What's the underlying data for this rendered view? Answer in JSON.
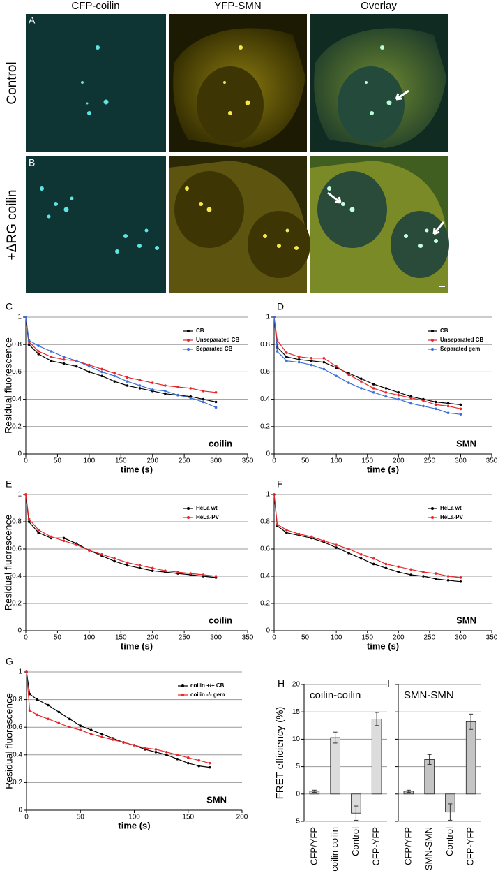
{
  "figure": {
    "column_headers": [
      "CFP-coilin",
      "YFP-SMN",
      "Overlay"
    ],
    "panels": [
      {
        "label": "A",
        "row_label": "Control"
      },
      {
        "label": "B",
        "row_label": "+ΔRG coilin"
      }
    ]
  },
  "chart_data": [
    {
      "type": "line",
      "panel": "C",
      "ylabel": "Residual fluorescence",
      "xlabel": "time (s)",
      "annotation": "coilin",
      "x": [
        0,
        5,
        20,
        40,
        60,
        80,
        100,
        120,
        140,
        160,
        180,
        200,
        220,
        240,
        260,
        280,
        300
      ],
      "series": [
        {
          "name": "CB",
          "color": "#000000",
          "values": [
            1.0,
            0.8,
            0.73,
            0.68,
            0.66,
            0.64,
            0.6,
            0.57,
            0.53,
            0.5,
            0.48,
            0.46,
            0.44,
            0.43,
            0.42,
            0.4,
            0.38
          ]
        },
        {
          "name": "Unseparated CB",
          "color": "#e8262a",
          "values": [
            1.0,
            0.82,
            0.75,
            0.71,
            0.69,
            0.68,
            0.65,
            0.62,
            0.59,
            0.56,
            0.54,
            0.52,
            0.5,
            0.49,
            0.48,
            0.46,
            0.45
          ]
        },
        {
          "name": "Separated CB",
          "color": "#3a6fd8",
          "values": [
            1.0,
            0.83,
            0.79,
            0.75,
            0.71,
            0.68,
            0.64,
            0.6,
            0.57,
            0.53,
            0.5,
            0.47,
            0.46,
            0.43,
            0.41,
            0.38,
            0.34
          ]
        }
      ],
      "xlim": [
        0,
        350
      ],
      "xticks": [
        0,
        50,
        100,
        150,
        200,
        250,
        300,
        350
      ],
      "ylim": [
        0,
        1
      ],
      "yticks": [
        0,
        0.2,
        0.4,
        0.6,
        0.8,
        1
      ],
      "grid": true,
      "legend": "top-right"
    },
    {
      "type": "line",
      "panel": "D",
      "xlabel": "time (s)",
      "annotation": "SMN",
      "x": [
        0,
        5,
        20,
        40,
        60,
        80,
        100,
        120,
        140,
        160,
        180,
        200,
        220,
        240,
        260,
        280,
        300
      ],
      "series": [
        {
          "name": "CB",
          "color": "#000000",
          "values": [
            1.0,
            0.78,
            0.71,
            0.69,
            0.68,
            0.67,
            0.63,
            0.59,
            0.55,
            0.51,
            0.48,
            0.45,
            0.42,
            0.4,
            0.38,
            0.37,
            0.36
          ]
        },
        {
          "name": "Unseparated CB",
          "color": "#e8262a",
          "values": [
            1.0,
            0.83,
            0.74,
            0.71,
            0.7,
            0.7,
            0.64,
            0.58,
            0.53,
            0.48,
            0.45,
            0.43,
            0.41,
            0.39,
            0.36,
            0.35,
            0.33
          ]
        },
        {
          "name": "Separated gem",
          "color": "#3a6fd8",
          "values": [
            1.0,
            0.75,
            0.68,
            0.67,
            0.65,
            0.62,
            0.57,
            0.52,
            0.48,
            0.45,
            0.42,
            0.4,
            0.37,
            0.35,
            0.33,
            0.3,
            0.29
          ]
        }
      ],
      "xlim": [
        0,
        350
      ],
      "xticks": [
        0,
        50,
        100,
        150,
        200,
        250,
        300,
        350
      ],
      "ylim": [
        0,
        1
      ],
      "yticks": [
        0,
        0.2,
        0.4,
        0.6,
        0.8,
        1
      ],
      "grid": true,
      "legend": "top-right"
    },
    {
      "type": "line",
      "panel": "E",
      "ylabel": "Residual fluorescence",
      "xlabel": "time (s)",
      "annotation": "coilin",
      "x": [
        0,
        5,
        20,
        40,
        60,
        80,
        100,
        120,
        140,
        160,
        180,
        200,
        220,
        240,
        260,
        280,
        300
      ],
      "series": [
        {
          "name": "HeLa wt",
          "color": "#000000",
          "values": [
            1.0,
            0.8,
            0.72,
            0.68,
            0.68,
            0.64,
            0.59,
            0.55,
            0.51,
            0.48,
            0.46,
            0.44,
            0.43,
            0.42,
            0.41,
            0.4,
            0.39
          ]
        },
        {
          "name": "HeLa-PV",
          "color": "#e8262a",
          "values": [
            1.0,
            0.82,
            0.74,
            0.69,
            0.66,
            0.63,
            0.59,
            0.56,
            0.53,
            0.5,
            0.48,
            0.46,
            0.44,
            0.43,
            0.42,
            0.41,
            0.4
          ]
        }
      ],
      "xlim": [
        0,
        350
      ],
      "xticks": [
        0,
        50,
        100,
        150,
        200,
        250,
        300,
        350
      ],
      "ylim": [
        0,
        1
      ],
      "yticks": [
        0,
        0.2,
        0.4,
        0.6,
        0.8,
        1
      ],
      "grid": true,
      "legend": "top-right"
    },
    {
      "type": "line",
      "panel": "F",
      "xlabel": "time (s)",
      "annotation": "SMN",
      "x": [
        0,
        5,
        20,
        40,
        60,
        80,
        100,
        120,
        140,
        160,
        180,
        200,
        220,
        240,
        260,
        280,
        300
      ],
      "series": [
        {
          "name": "HeLa wt",
          "color": "#000000",
          "values": [
            1.0,
            0.77,
            0.72,
            0.7,
            0.68,
            0.65,
            0.61,
            0.57,
            0.53,
            0.49,
            0.46,
            0.43,
            0.41,
            0.4,
            0.38,
            0.37,
            0.36
          ]
        },
        {
          "name": "HeLa-PV",
          "color": "#e8262a",
          "values": [
            1.0,
            0.78,
            0.74,
            0.71,
            0.69,
            0.66,
            0.63,
            0.6,
            0.56,
            0.53,
            0.49,
            0.47,
            0.45,
            0.43,
            0.42,
            0.4,
            0.39
          ]
        }
      ],
      "xlim": [
        0,
        350
      ],
      "xticks": [
        0,
        50,
        100,
        150,
        200,
        250,
        300,
        350
      ],
      "ylim": [
        0,
        1
      ],
      "yticks": [
        0,
        0.2,
        0.4,
        0.6,
        0.8,
        1
      ],
      "grid": true,
      "legend": "top-right"
    },
    {
      "type": "line",
      "panel": "G",
      "ylabel": "Residual fluorescence",
      "xlabel": "time (s)",
      "annotation": "SMN",
      "x": [
        0,
        3,
        10,
        20,
        30,
        40,
        50,
        60,
        70,
        80,
        90,
        100,
        110,
        120,
        130,
        140,
        150,
        160,
        170
      ],
      "series": [
        {
          "name": "coilin +/+  CB",
          "color": "#000000",
          "values": [
            1.0,
            0.84,
            0.8,
            0.76,
            0.71,
            0.66,
            0.61,
            0.58,
            0.55,
            0.52,
            0.49,
            0.47,
            0.44,
            0.42,
            0.4,
            0.37,
            0.34,
            0.32,
            0.31
          ]
        },
        {
          "name": "coilin -/-  gem",
          "color": "#e8262a",
          "values": [
            1.0,
            0.72,
            0.69,
            0.66,
            0.63,
            0.6,
            0.58,
            0.55,
            0.53,
            0.51,
            0.49,
            0.47,
            0.45,
            0.44,
            0.42,
            0.4,
            0.38,
            0.36,
            0.34
          ]
        }
      ],
      "xlim": [
        0,
        200
      ],
      "xticks": [
        0,
        50,
        100,
        150,
        200
      ],
      "ylim": [
        0,
        1
      ],
      "yticks": [
        0,
        0.2,
        0.4,
        0.6,
        0.8,
        1
      ],
      "grid": true,
      "legend": "top-right"
    },
    {
      "type": "bar",
      "panel": "H",
      "title": "coilin-coilin",
      "ylabel": "FRET efficiency (%)",
      "categories": [
        "CFP/YFP",
        "coilin-coilin",
        "Control",
        "CFP-YFP"
      ],
      "values": [
        0.5,
        10.3,
        -3.5,
        13.7
      ],
      "errors": [
        0.2,
        1.0,
        1.3,
        1.2
      ],
      "color": "#dcdcdc",
      "ylim": [
        -5,
        20
      ],
      "yticks": [
        -5,
        0,
        5,
        10,
        15,
        20
      ],
      "grid": true
    },
    {
      "type": "bar",
      "panel": "I",
      "title": "SMN-SMN",
      "categories": [
        "CFP/YFP",
        "SMN-SMN",
        "Control",
        "CFP-YFP"
      ],
      "values": [
        0.5,
        6.3,
        -3.3,
        13.2
      ],
      "errors": [
        0.2,
        0.9,
        1.5,
        1.4
      ],
      "color": "#c4c4c4",
      "ylim": [
        -5,
        20
      ],
      "yticks": [
        -5,
        0,
        5,
        10,
        15,
        20
      ],
      "grid": true
    }
  ]
}
